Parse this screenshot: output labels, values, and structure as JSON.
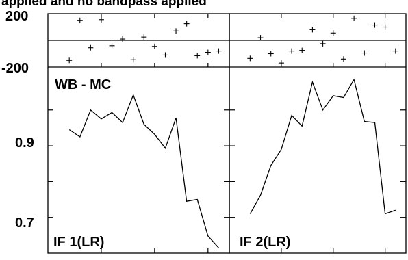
{
  "chart_data": {
    "type": "line",
    "title": "applied and no bandpass applied",
    "top_panel": {
      "type": "scatter",
      "annotation": "WB - MC",
      "ylim": [
        -200,
        200
      ],
      "yticks": [
        {
          "value": 200,
          "label": "200"
        },
        {
          "value": -200,
          "label": "-200"
        }
      ],
      "reference_line": 0
    },
    "bottom_panel": {
      "type": "line",
      "ylim": [
        0.6,
        1.12
      ],
      "yticks": [
        {
          "value": 0.9,
          "label": "0.9"
        },
        {
          "value": 0.7,
          "label": "0.7"
        }
      ]
    },
    "xlim": [
      0,
      17
    ],
    "x_tick_positions": [
      5,
      10,
      15
    ],
    "panels": [
      {
        "name": "IF 1(LR)",
        "scatter": {
          "x": [
            2,
            3,
            4,
            5,
            6,
            7,
            8,
            9,
            10,
            11,
            12,
            13,
            14,
            15,
            16
          ],
          "y": [
            -150,
            150,
            -55,
            155,
            -40,
            10,
            -145,
            25,
            -45,
            -110,
            70,
            125,
            -115,
            -90,
            -80
          ]
        },
        "line": {
          "x": [
            2,
            3,
            4,
            5,
            6,
            7,
            8,
            9,
            10,
            11,
            12,
            13,
            14,
            15,
            16
          ],
          "y": [
            0.945,
            0.925,
            1.0,
            0.975,
            0.993,
            0.965,
            1.042,
            0.96,
            0.932,
            0.893,
            0.978,
            0.745,
            0.75,
            0.648,
            0.615
          ]
        }
      },
      {
        "name": "IF 2(LR)",
        "scatter": {
          "x": [
            2,
            3,
            4,
            5,
            6,
            7,
            8,
            9,
            10,
            11,
            12,
            13,
            14,
            15,
            16
          ],
          "y": [
            -135,
            20,
            -100,
            -170,
            -80,
            -75,
            80,
            -25,
            55,
            -140,
            165,
            -95,
            115,
            100,
            -80
          ]
        },
        "line": {
          "x": [
            2,
            3,
            4,
            5,
            6,
            7,
            8,
            9,
            10,
            11,
            12,
            13,
            14,
            15,
            16
          ],
          "y": [
            0.71,
            0.762,
            0.845,
            0.89,
            0.985,
            0.955,
            1.078,
            1.0,
            1.04,
            1.035,
            1.085,
            0.968,
            0.965,
            0.71,
            0.72
          ]
        }
      }
    ]
  }
}
